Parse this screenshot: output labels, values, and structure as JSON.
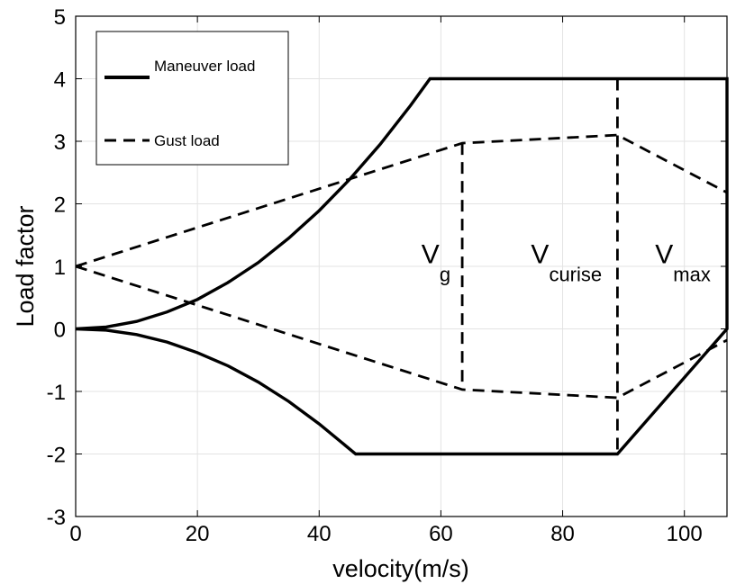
{
  "chart_data": {
    "type": "line",
    "xlabel": "velocity(m/s)",
    "ylabel": "Load factor",
    "xlim": [
      0,
      107
    ],
    "ylim": [
      -3,
      5
    ],
    "xticks": [
      0,
      20,
      40,
      60,
      80,
      100
    ],
    "yticks": [
      -3,
      -2,
      -1,
      0,
      1,
      2,
      3,
      4,
      5
    ],
    "grid": true,
    "legend_position": "top-left",
    "series": [
      {
        "name": "Maneuver load",
        "style": "solid",
        "color": "#000000",
        "segments": [
          [
            [
              0,
              0
            ],
            [
              5,
              0.03
            ],
            [
              10,
              0.12
            ],
            [
              15,
              0.27
            ],
            [
              20,
              0.47
            ],
            [
              25,
              0.74
            ],
            [
              30,
              1.06
            ],
            [
              35,
              1.45
            ],
            [
              40,
              1.89
            ],
            [
              45,
              2.39
            ],
            [
              50,
              2.95
            ],
            [
              55,
              3.57
            ],
            [
              58.2,
              4.0
            ],
            [
              107,
              4.0
            ],
            [
              107,
              0
            ],
            [
              89,
              -2
            ],
            [
              46,
              -2
            ],
            [
              40,
              -1.52
            ],
            [
              35,
              -1.16
            ],
            [
              30,
              -0.85
            ],
            [
              25,
              -0.59
            ],
            [
              20,
              -0.38
            ],
            [
              15,
              -0.21
            ],
            [
              10,
              -0.09
            ],
            [
              5,
              -0.02
            ],
            [
              0,
              0
            ]
          ]
        ]
      },
      {
        "name": "Gust load",
        "style": "dashed",
        "color": "#000000",
        "segments": [
          [
            [
              0,
              1
            ],
            [
              63.5,
              2.97
            ],
            [
              89,
              3.1
            ],
            [
              107,
              2.18
            ]
          ],
          [
            [
              0,
              1
            ],
            [
              63.5,
              -0.97
            ],
            [
              89,
              -1.1
            ],
            [
              107,
              -0.18
            ]
          ],
          [
            [
              63.5,
              2.97
            ],
            [
              63.5,
              -0.97
            ]
          ],
          [
            [
              89,
              4.0
            ],
            [
              89,
              -2.0
            ]
          ]
        ]
      }
    ],
    "annotations": [
      {
        "main": "V",
        "sub": "g",
        "x": 56.8,
        "y": 1.05
      },
      {
        "main": "V",
        "sub": "curise",
        "x": 74.8,
        "y": 1.05
      },
      {
        "main": "V",
        "sub": "max",
        "x": 95.2,
        "y": 1.05
      }
    ]
  }
}
